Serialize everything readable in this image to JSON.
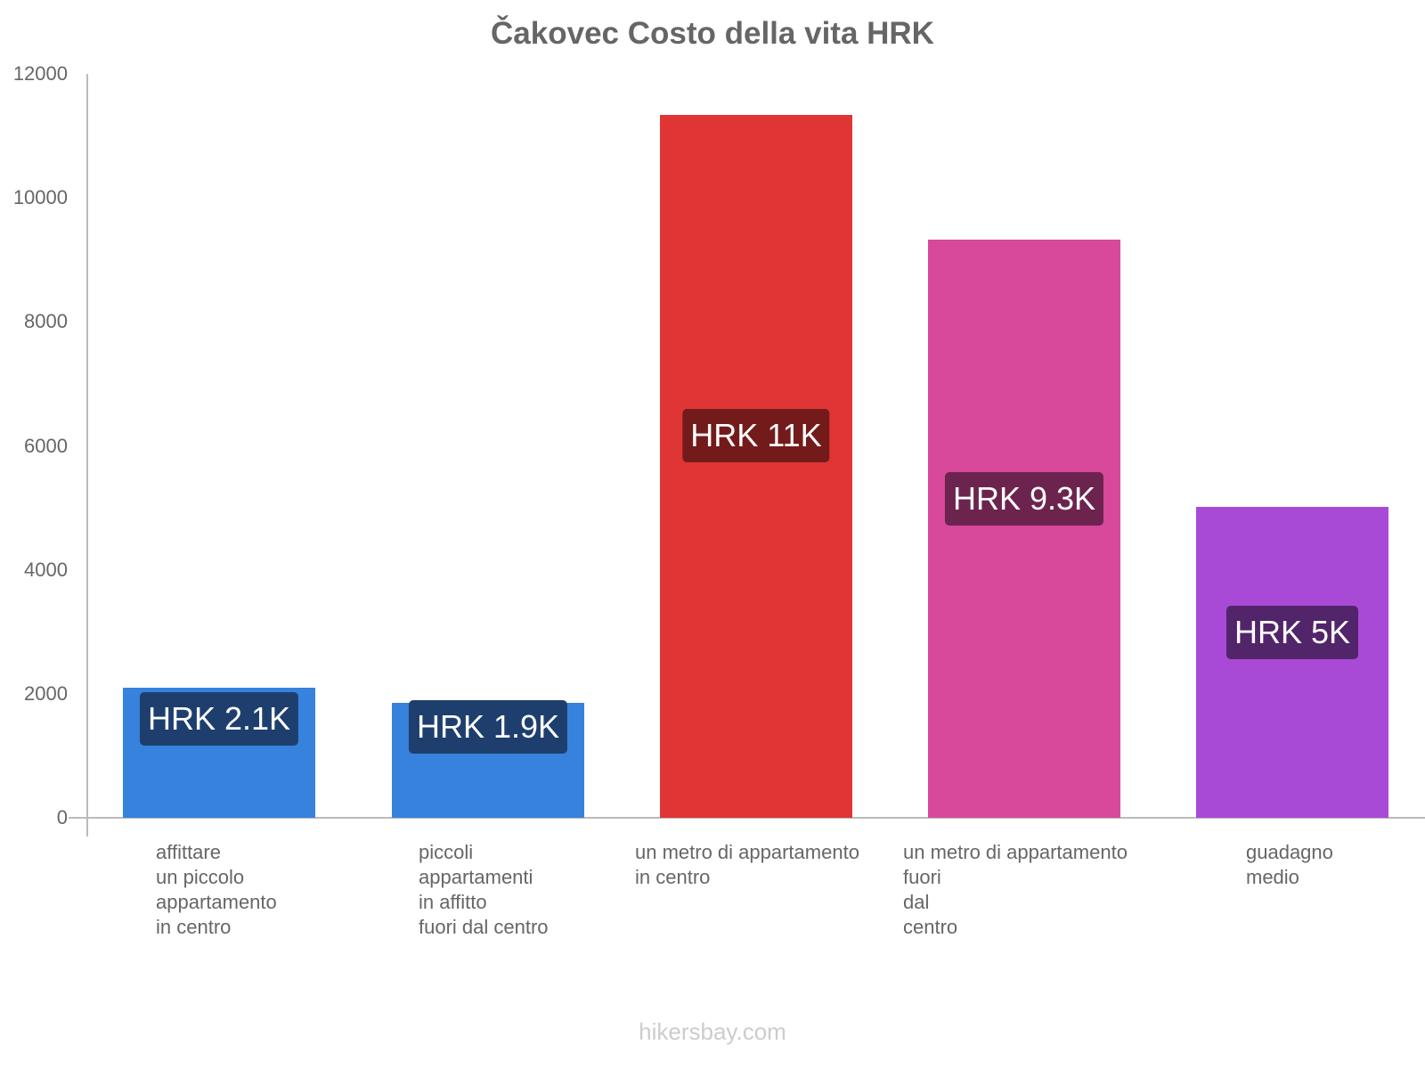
{
  "title": "Čakovec Costo della vita HRK",
  "footer": "hikersbay.com",
  "y_ticks": [
    "0",
    "2000",
    "4000",
    "6000",
    "8000",
    "10000",
    "12000"
  ],
  "bars": [
    {
      "label": "affittare\nun piccolo\nappartamento\nin centro",
      "value_label": "HRK 2.1K",
      "color": "#3682dd",
      "label_bg": "#1e3f6e"
    },
    {
      "label": "piccoli\nappartamenti\nin affitto\nfuori dal centro",
      "value_label": "HRK 1.9K",
      "color": "#3682dd",
      "label_bg": "#1e3f6e"
    },
    {
      "label": "un metro di appartamento\nin centro",
      "value_label": "HRK 11K",
      "color": "#e03535",
      "label_bg": "#731b1b"
    },
    {
      "label": "un metro di appartamento\nfuori\ndal\ncentro",
      "value_label": "HRK 9.3K",
      "color": "#d8489b",
      "label_bg": "#6c244f"
    },
    {
      "label": "guadagno\nmedio",
      "value_label": "HRK 5K",
      "color": "#a84ad6",
      "label_bg": "#52246a"
    }
  ],
  "chart_data": {
    "type": "bar",
    "title": "Čakovec Costo della vita HRK",
    "categories": [
      "affittare un piccolo appartamento in centro",
      "piccoli appartamenti in affitto fuori dal centro",
      "un metro di appartamento in centro",
      "un metro di appartamento fuori dal centro",
      "guadagno medio"
    ],
    "values": [
      2100,
      1850,
      11340,
      9330,
      5020
    ],
    "data_labels": [
      "HRK 2.1K",
      "HRK 1.9K",
      "HRK 11K",
      "HRK 9.3K",
      "HRK 5K"
    ],
    "colors": [
      "#3682dd",
      "#3682dd",
      "#e03535",
      "#d8489b",
      "#a84ad6"
    ],
    "xlabel": "",
    "ylabel": "",
    "ylim": [
      0,
      12000
    ],
    "yticks": [
      0,
      2000,
      4000,
      6000,
      8000,
      10000,
      12000
    ],
    "grid": false,
    "legend": "none",
    "source": "hikersbay.com"
  }
}
